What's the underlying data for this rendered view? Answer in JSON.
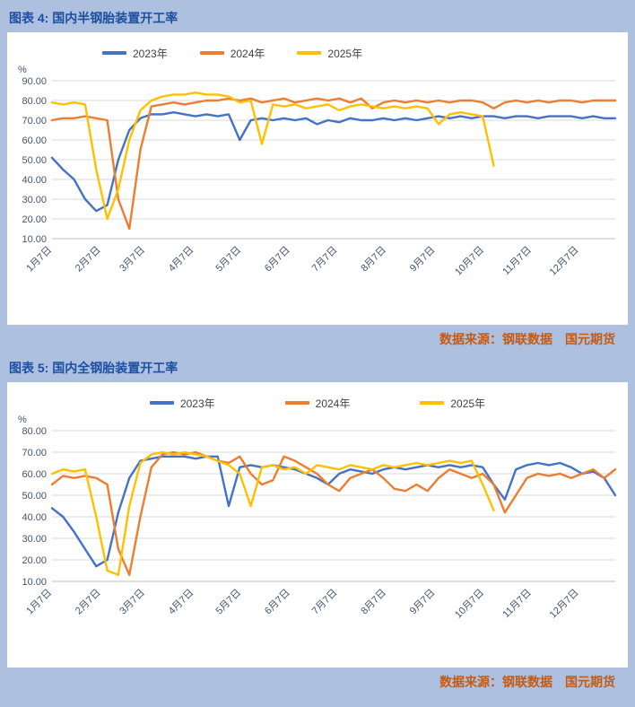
{
  "figure4": {
    "title": "图表 4: 国内半钢胎装置开工率",
    "source": "数据来源：钢联数据　国元期货"
  },
  "figure5": {
    "title": "图表 5: 国内全钢胎装置开工率",
    "source": "数据来源：钢联数据　国元期货"
  },
  "colors": {
    "background": "#aec0e0",
    "title_blue": "#1e4fa0",
    "source_orange": "#c55a11",
    "series_2023": "#4472c4",
    "series_2024": "#ed7d31",
    "series_2025": "#ffc000",
    "gridline": "#d9d9d9"
  },
  "chart_data": [
    {
      "type": "line",
      "title": "国内半钢胎装置开工率",
      "unit": "%",
      "ylim": [
        10,
        90
      ],
      "y_tick_step": 10,
      "grid": true,
      "legend_position": "top",
      "y_tick_labels": [
        "90.00",
        "80.00",
        "70.00",
        "60.00",
        "50.00",
        "40.00",
        "30.00",
        "20.00",
        "10.00"
      ],
      "x_tick_labels": [
        "1月7日",
        "2月7日",
        "3月7日",
        "4月7日",
        "5月7日",
        "6月7日",
        "7月7日",
        "8月7日",
        "9月7日",
        "10月7日",
        "11月7日",
        "12月7日"
      ],
      "n_points": 52,
      "series": [
        {
          "name": "2023年",
          "color": "#4472c4",
          "values": [
            51,
            45,
            40,
            30,
            24,
            27,
            50,
            65,
            71,
            73,
            73,
            74,
            73,
            72,
            73,
            72,
            73,
            60,
            70,
            71,
            70,
            71,
            70,
            71,
            68,
            70,
            69,
            71,
            70,
            70,
            71,
            70,
            71,
            70,
            71,
            72,
            71,
            72,
            71,
            72,
            72,
            71,
            72,
            72,
            71,
            72,
            72,
            72,
            71,
            72,
            71,
            71
          ]
        },
        {
          "name": "2024年",
          "color": "#ed7d31",
          "values": [
            70,
            71,
            71,
            72,
            71,
            70,
            30,
            15,
            55,
            77,
            78,
            79,
            78,
            79,
            80,
            80,
            81,
            80,
            81,
            79,
            80,
            81,
            79,
            80,
            81,
            80,
            81,
            79,
            81,
            76,
            79,
            80,
            79,
            80,
            79,
            80,
            79,
            80,
            80,
            79,
            76,
            79,
            80,
            79,
            80,
            79,
            80,
            80,
            79,
            80,
            80,
            80
          ]
        },
        {
          "name": "2025年",
          "color": "#ffc000",
          "values": [
            79,
            78,
            79,
            78,
            45,
            20,
            35,
            60,
            75,
            80,
            82,
            83,
            83,
            84,
            83,
            83,
            82,
            79,
            80,
            58,
            78,
            77,
            78,
            76,
            77,
            78,
            75,
            77,
            78,
            77,
            76,
            77,
            76,
            77,
            76,
            68,
            73,
            74,
            73,
            72,
            47
          ]
        }
      ]
    },
    {
      "type": "line",
      "title": "国内全钢胎装置开工率",
      "unit": "%",
      "ylim": [
        10,
        80
      ],
      "y_tick_step": 10,
      "grid": true,
      "legend_position": "top",
      "y_tick_labels": [
        "80.00",
        "70.00",
        "60.00",
        "50.00",
        "40.00",
        "30.00",
        "20.00",
        "10.00"
      ],
      "x_tick_labels": [
        "1月7日",
        "2月7日",
        "3月7日",
        "4月7日",
        "5月7日",
        "6月7日",
        "7月7日",
        "8月7日",
        "9月7日",
        "10月7日",
        "11月7日",
        "12月7日"
      ],
      "n_points": 52,
      "series": [
        {
          "name": "2023年",
          "color": "#4472c4",
          "values": [
            44,
            40,
            33,
            25,
            17,
            20,
            42,
            58,
            66,
            67,
            68,
            68,
            68,
            67,
            68,
            68,
            45,
            63,
            64,
            63,
            64,
            63,
            62,
            60,
            58,
            55,
            60,
            62,
            61,
            60,
            62,
            63,
            62,
            63,
            64,
            63,
            64,
            63,
            64,
            63,
            55,
            48,
            62,
            64,
            65,
            64,
            65,
            63,
            60,
            61,
            58,
            50
          ]
        },
        {
          "name": "2024年",
          "color": "#ed7d31",
          "values": [
            55,
            59,
            58,
            59,
            58,
            55,
            25,
            13,
            40,
            63,
            69,
            70,
            69,
            70,
            68,
            66,
            65,
            68,
            60,
            55,
            57,
            68,
            66,
            63,
            60,
            55,
            52,
            58,
            60,
            62,
            58,
            53,
            52,
            55,
            52,
            58,
            62,
            60,
            58,
            60,
            55,
            42,
            50,
            58,
            60,
            59,
            60,
            58,
            60,
            62,
            58,
            62
          ]
        },
        {
          "name": "2025年",
          "color": "#ffc000",
          "values": [
            60,
            62,
            61,
            62,
            40,
            15,
            13,
            45,
            65,
            69,
            70,
            69,
            70,
            69,
            68,
            66,
            64,
            60,
            45,
            63,
            64,
            62,
            63,
            60,
            64,
            63,
            62,
            64,
            63,
            62,
            64,
            63,
            64,
            65,
            64,
            65,
            66,
            65,
            66,
            55,
            43
          ]
        }
      ]
    }
  ]
}
